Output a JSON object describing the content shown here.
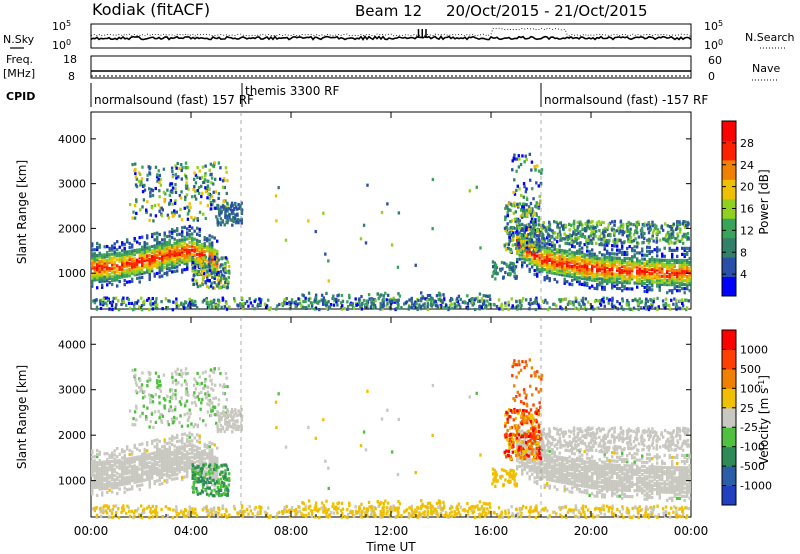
{
  "header": {
    "station": "Kodiak (fitACF)",
    "beam": "Beam 12",
    "date_range": "20/Oct/2015 - 21/Oct/2015"
  },
  "top_panels": {
    "nsky_label": "N.Sky",
    "nsearch_label": "N.Search",
    "nsky_ticks": [
      "10^5",
      "10^0"
    ],
    "nsearch_ticks": [
      "10^5",
      "10^0"
    ],
    "freq_label_1": "Freq.",
    "freq_label_2": "[MHz]",
    "freq_ticks": [
      "18",
      "8"
    ],
    "nave_label": "Nave",
    "nave_ticks": [
      "60",
      "0"
    ],
    "cpid_label": "CPID",
    "cpid_segments": [
      {
        "label": "normalsound (fast) 157 RF",
        "start": 0,
        "end": 6
      },
      {
        "label": "themis 3300 RF",
        "start": 6,
        "end": 18
      },
      {
        "label": "normalsound (fast) -157 RF",
        "start": 18,
        "end": 24
      }
    ]
  },
  "chart_data": [
    {
      "type": "heatmap",
      "title": "Power [dB]",
      "ylabel": "Slant Range [km]",
      "xlabel": "Time UT",
      "xlim": [
        0,
        24
      ],
      "ylim": [
        200,
        4600
      ],
      "yticks": [
        1000,
        2000,
        3000,
        4000
      ],
      "colorbar": {
        "label": "Power [dB]",
        "ticks": [
          "28",
          "24",
          "20",
          "16",
          "12",
          "8",
          "4"
        ],
        "range": [
          0,
          30
        ],
        "colors": [
          "#0000ff",
          "#2a4fa8",
          "#33806a",
          "#3aa35a",
          "#90d020",
          "#f0c000",
          "#f08000",
          "#ff2000",
          "#ff0000"
        ]
      },
      "features": [
        {
          "name": "band-1",
          "t": [
            0,
            1,
            2,
            3,
            4,
            5
          ],
          "range": [
            1150,
            1200,
            1300,
            1450,
            1550,
            1300
          ],
          "power": 26
        },
        {
          "name": "band-2",
          "t": [
            17,
            18,
            19,
            20,
            21,
            22,
            23,
            24
          ],
          "range": [
            1700,
            1350,
            1250,
            1150,
            1100,
            1080,
            1050,
            1050
          ],
          "power": 24
        }
      ]
    },
    {
      "type": "heatmap",
      "title": "Velocity [m s^-1]",
      "ylabel": "Slant Range [km]",
      "xlabel": "Time UT",
      "xlim": [
        0,
        24
      ],
      "ylim": [
        200,
        4600
      ],
      "yticks": [
        1000,
        2000,
        3000,
        4000
      ],
      "xticks": [
        "00:00",
        "04:00",
        "08:00",
        "12:00",
        "16:00",
        "20:00",
        "00:00"
      ],
      "colorbar": {
        "label": "Velocity [m s^-1]",
        "ticks": [
          "1000",
          "500",
          "100",
          "25",
          "-25",
          "-100",
          "-500",
          "-1000"
        ],
        "colors": [
          "#2040c0",
          "#2a5fa8",
          "#2e8b57",
          "#50c040",
          "#c8c8c0",
          "#f0c000",
          "#f08000",
          "#ff4000",
          "#ff0000"
        ]
      }
    }
  ]
}
